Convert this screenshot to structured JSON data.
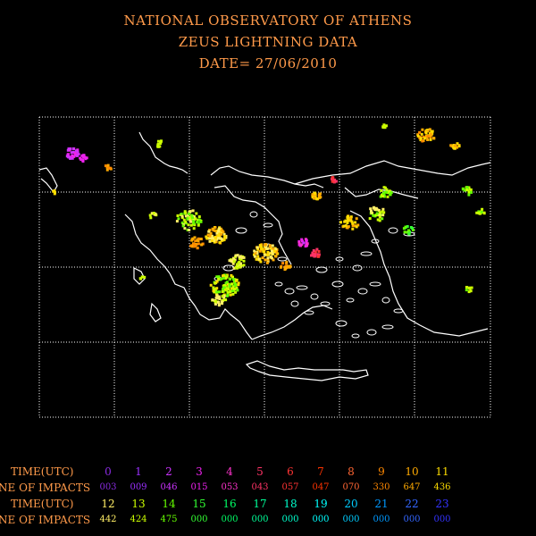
{
  "title_lines": [
    "NATIONAL OBSERVATORY OF ATHENS",
    "ZEUS LIGHTNING DATA",
    "DATE= 27/06/2010"
  ],
  "legend": {
    "time_label": "TIME(UTC)",
    "impacts_label": "NE OF IMPACTS",
    "row1": {
      "hours": [
        "0",
        "1",
        "2",
        "3",
        "4",
        "5",
        "6",
        "7",
        "8",
        "9",
        "10",
        "11"
      ],
      "counts": [
        "003",
        "009",
        "046",
        "015",
        "053",
        "043",
        "057",
        "047",
        "070",
        "330",
        "647",
        "436"
      ],
      "colors": [
        "#8a2be2",
        "#9b30ff",
        "#cc33ff",
        "#ee22ee",
        "#ff33cc",
        "#ff3366",
        "#ff3333",
        "#ff3300",
        "#ff6633",
        "#ff8800",
        "#ffaa00",
        "#ffdd00"
      ]
    },
    "row2": {
      "hours": [
        "12",
        "13",
        "14",
        "15",
        "16",
        "17",
        "18",
        "19",
        "20",
        "21",
        "22",
        "23"
      ],
      "counts": [
        "442",
        "424",
        "475",
        "000",
        "000",
        "000",
        "000",
        "000",
        "000",
        "000",
        "000",
        "000"
      ],
      "colors": [
        "#ffee66",
        "#ccff00",
        "#66ff00",
        "#33ff33",
        "#00ff66",
        "#00ff99",
        "#00ffcc",
        "#00ffff",
        "#00ccff",
        "#0099ff",
        "#3366ff",
        "#3333ff"
      ]
    }
  },
  "map_colors": {
    "coast": "#ffffff",
    "grid": "#ffffff",
    "frame": "#ffffff"
  }
}
